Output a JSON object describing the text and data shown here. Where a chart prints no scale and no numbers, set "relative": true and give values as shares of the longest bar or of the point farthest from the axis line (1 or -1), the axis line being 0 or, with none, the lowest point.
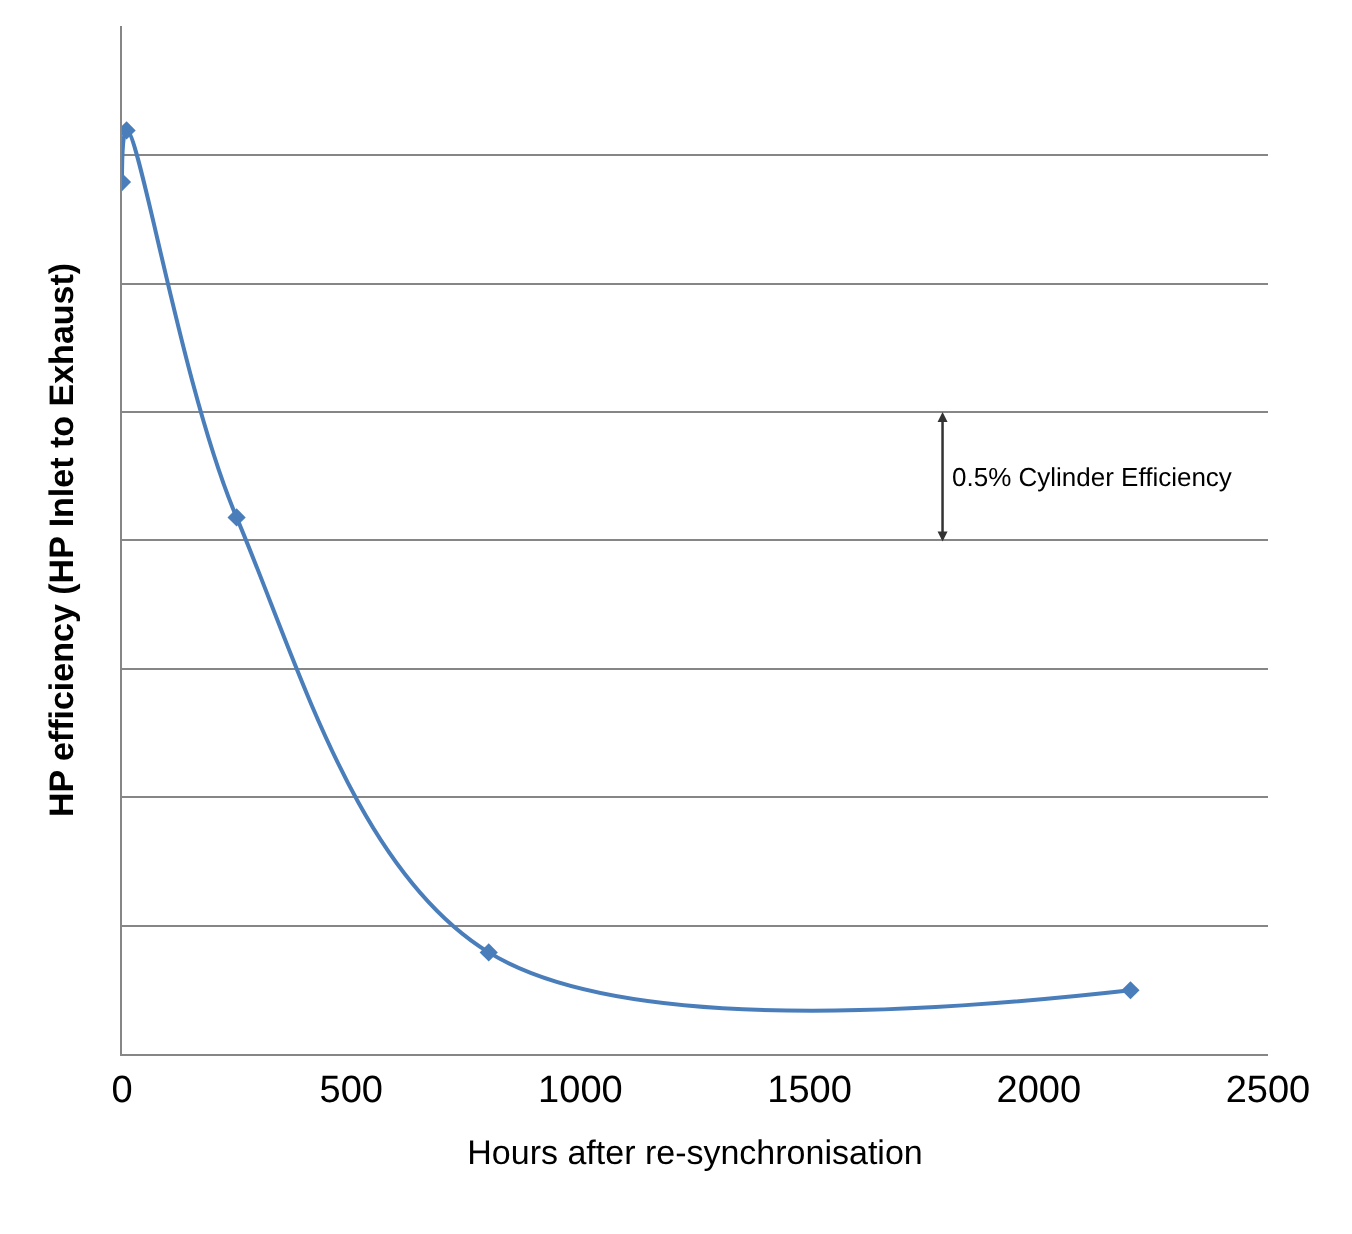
{
  "chart_data": {
    "type": "line",
    "xlabel": "Hours after re-synchronisation",
    "ylabel": "HP efficiency (HP Inlet to Exhaust)",
    "x": [
      0,
      10,
      250,
      800,
      2200
    ],
    "series": [
      {
        "color": "#4a7ebb",
        "values": [
          0.944,
          1,
          0.581,
          0.11,
          0.069
        ]
      }
    ],
    "relative": true,
    "xlim": [
      0,
      2500
    ],
    "xticks": [
      0,
      500,
      1000,
      1500,
      2000,
      2500
    ],
    "grid": "y",
    "marker": "diamond",
    "line_style": "solid",
    "annotations": [
      "0.5% Cylinder Efficiency"
    ]
  }
}
